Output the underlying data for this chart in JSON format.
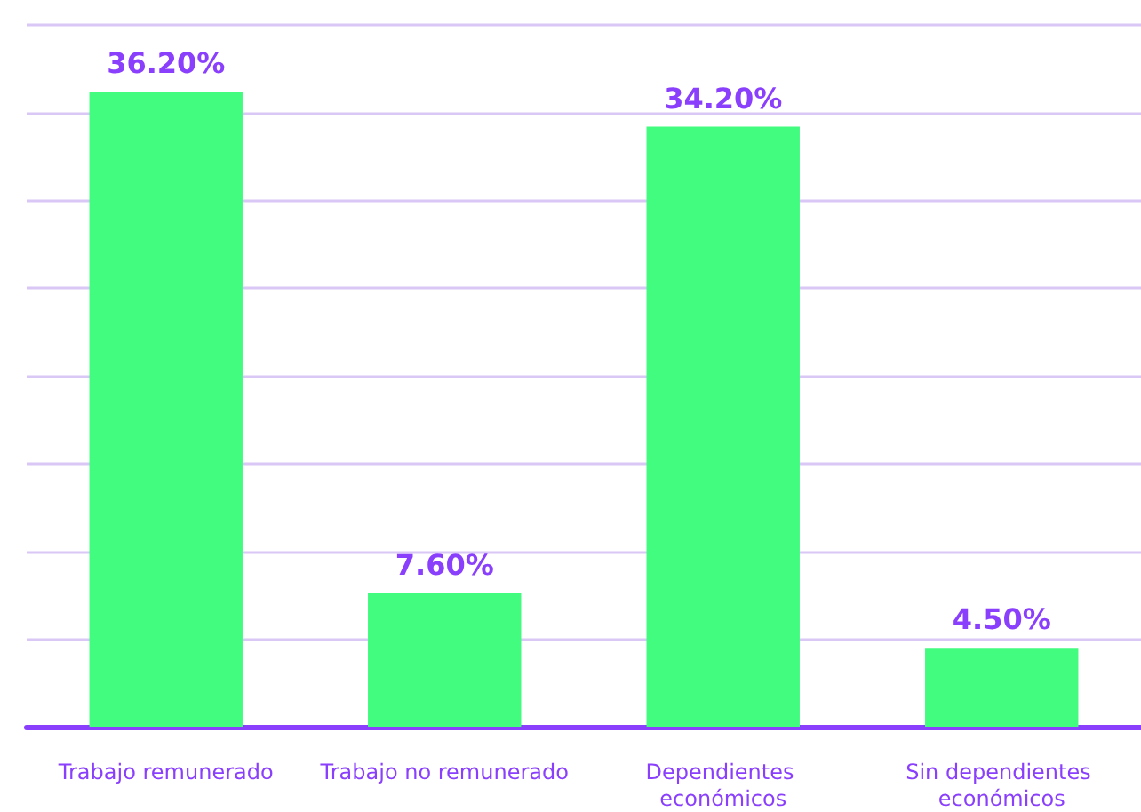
{
  "chart_data": {
    "type": "bar",
    "categories": [
      "Trabajo remunerado",
      "Trabajo no remunerado",
      "Dependientes económicos",
      "Sin dependientes económicos"
    ],
    "values": [
      36.2,
      7.6,
      34.2,
      4.5
    ],
    "value_labels": [
      "36.20%",
      "7.60%",
      "34.20%",
      "4.50%"
    ],
    "color": "#42fc7f",
    "ylim": [
      0,
      40
    ],
    "yticks": [
      0,
      5,
      10,
      15,
      20,
      25,
      30,
      35,
      40
    ],
    "grid": "y",
    "tick_labels": "x"
  }
}
